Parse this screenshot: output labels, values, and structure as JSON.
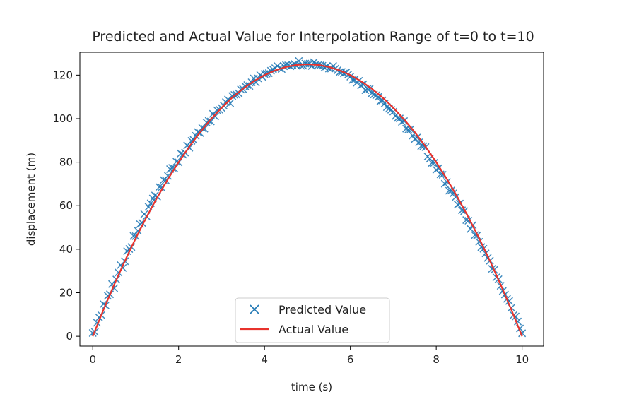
{
  "chart_data": {
    "type": "scatter",
    "title": "Predicted and Actual Value for Interpolation Range of t=0 to t=10",
    "xlabel": "time (s)",
    "ylabel": "displacement (m)",
    "xlim": [
      -0.3,
      10.5
    ],
    "ylim": [
      -4.5,
      130.5
    ],
    "xticks": [
      0,
      2,
      4,
      6,
      8,
      10
    ],
    "yticks": [
      0,
      20,
      40,
      60,
      80,
      100,
      120
    ],
    "grid": false,
    "legend_position": "bottom-center",
    "series": [
      {
        "name": "Predicted Value",
        "marker": "x",
        "color": "#1f77b4",
        "x": [
          0.0,
          0.05,
          0.1,
          0.15,
          0.2,
          0.25,
          0.3,
          0.35,
          0.4,
          0.45,
          0.5,
          0.55,
          0.6,
          0.65,
          0.7,
          0.75,
          0.8,
          0.85,
          0.9,
          0.95,
          1.0,
          1.05,
          1.1,
          1.15,
          1.2,
          1.25,
          1.3,
          1.35,
          1.4,
          1.45,
          1.5,
          1.55,
          1.6,
          1.65,
          1.7,
          1.75,
          1.8,
          1.85,
          1.9,
          1.95,
          2.0,
          2.05,
          2.1,
          2.15,
          2.2,
          2.25,
          2.3,
          2.35,
          2.4,
          2.45,
          2.5,
          2.55,
          2.6,
          2.65,
          2.7,
          2.75,
          2.8,
          2.85,
          2.9,
          2.95,
          3.0,
          3.05,
          3.1,
          3.15,
          3.2,
          3.25,
          3.3,
          3.35,
          3.4,
          3.45,
          3.5,
          3.55,
          3.6,
          3.65,
          3.7,
          3.75,
          3.8,
          3.85,
          3.9,
          3.95,
          4.0,
          4.05,
          4.1,
          4.15,
          4.2,
          4.25,
          4.3,
          4.35,
          4.4,
          4.45,
          4.5,
          4.55,
          4.6,
          4.65,
          4.7,
          4.75,
          4.8,
          4.85,
          4.9,
          4.95,
          5.0,
          5.05,
          5.1,
          5.15,
          5.2,
          5.25,
          5.3,
          5.35,
          5.4,
          5.45,
          5.5,
          5.55,
          5.6,
          5.65,
          5.7,
          5.75,
          5.8,
          5.85,
          5.9,
          5.95,
          6.0,
          6.05,
          6.1,
          6.15,
          6.2,
          6.25,
          6.3,
          6.35,
          6.4,
          6.45,
          6.5,
          6.55,
          6.6,
          6.65,
          6.7,
          6.75,
          6.8,
          6.85,
          6.9,
          6.95,
          7.0,
          7.05,
          7.1,
          7.15,
          7.2,
          7.25,
          7.3,
          7.35,
          7.4,
          7.45,
          7.5,
          7.55,
          7.6,
          7.65,
          7.7,
          7.75,
          7.8,
          7.85,
          7.9,
          7.95,
          8.0,
          8.05,
          8.1,
          8.15,
          8.2,
          8.25,
          8.3,
          8.35,
          8.4,
          8.45,
          8.5,
          8.55,
          8.6,
          8.65,
          8.7,
          8.75,
          8.8,
          8.85,
          8.9,
          8.95,
          9.0,
          9.05,
          9.1,
          9.15,
          9.2,
          9.25,
          9.3,
          9.35,
          9.4,
          9.45,
          9.5,
          9.55,
          9.6,
          9.65,
          9.7,
          9.75,
          9.8,
          9.85,
          9.9,
          9.95,
          10.0
        ],
        "y": [
          1.5,
          2.0,
          6.2,
          8.6,
          9.7,
          14.8,
          14.2,
          18.6,
          19.3,
          24.0,
          22.1,
          26.1,
          29.3,
          32.7,
          31.4,
          34.5,
          39.1,
          40.1,
          41.0,
          46.1,
          46.0,
          48.5,
          51.5,
          52.1,
          56.1,
          55.2,
          59.5,
          61.1,
          63.3,
          64.7,
          64.2,
          68.6,
          68.4,
          71.8,
          71.7,
          73.7,
          76.8,
          77.4,
          77.1,
          80.2,
          79.9,
          84.0,
          83.5,
          84.4,
          87.7,
          86.6,
          89.8,
          90.2,
          92.1,
          93.8,
          93.4,
          95.7,
          95.4,
          98.2,
          99.0,
          98.7,
          102.2,
          101.0,
          103.8,
          104.1,
          104.9,
          106.0,
          107.6,
          108.8,
          107.1,
          110.4,
          110.9,
          111.0,
          111.6,
          113.4,
          113.6,
          114.9,
          115.4,
          115.0,
          116.7,
          118.5,
          116.6,
          118.5,
          120.0,
          119.2,
          120.5,
          120.7,
          120.9,
          122.0,
          122.6,
          123.2,
          124.2,
          123.2,
          122.8,
          124.2,
          124.6,
          124.5,
          124.1,
          124.6,
          125.1,
          124.2,
          126.5,
          124.3,
          124.4,
          125.3,
          125.1,
          125.3,
          124.2,
          125.9,
          125.0,
          124.6,
          124.5,
          124.3,
          123.5,
          124.0,
          123.0,
          123.0,
          124.2,
          123.0,
          122.2,
          121.4,
          121.5,
          120.8,
          121.2,
          120.3,
          119.3,
          117.8,
          118.0,
          116.5,
          117.4,
          115.3,
          115.8,
          113.1,
          113.7,
          113.7,
          111.7,
          111.1,
          110.7,
          110.0,
          108.0,
          108.4,
          107.0,
          105.3,
          104.6,
          104.1,
          103.2,
          101.2,
          100.3,
          100.1,
          98.5,
          98.9,
          95.4,
          95.0,
          95.1,
          92.2,
          90.6,
          91.3,
          89.1,
          87.4,
          87.3,
          86.9,
          82.6,
          81.6,
          79.7,
          79.7,
          76.5,
          77.2,
          74.4,
          74.2,
          70.1,
          70.9,
          66.9,
          67.0,
          65.7,
          63.9,
          60.5,
          61.0,
          57.9,
          57.5,
          53.4,
          53.1,
          49.3,
          51.1,
          46.5,
          46.3,
          43.4,
          41.0,
          40.2,
          38.1,
          36.0,
          34.7,
          31.0,
          30.5,
          27.1,
          26.2,
          23.2,
          20.8,
          19.2,
          17.2,
          16.2,
          13.1,
          9.7,
          9.1,
          6.8,
          3.6,
          1.4
        ]
      },
      {
        "name": "Actual Value",
        "marker": "line",
        "color": "#e8322c",
        "formula_note": "",
        "x": [
          0,
          0.25,
          0.5,
          0.75,
          1,
          1.25,
          1.5,
          1.75,
          2,
          2.25,
          2.5,
          2.75,
          3,
          3.25,
          3.5,
          3.75,
          4,
          4.25,
          4.5,
          4.75,
          5,
          5.25,
          5.5,
          5.75,
          6,
          6.25,
          6.5,
          6.75,
          7,
          7.25,
          7.5,
          7.75,
          8,
          8.25,
          8.5,
          8.75,
          9,
          9.25,
          9.5,
          9.75,
          10
        ],
        "y": [
          0,
          12.19,
          23.75,
          34.69,
          45.0,
          54.69,
          63.75,
          72.19,
          80.0,
          87.19,
          93.75,
          99.69,
          105.0,
          109.69,
          113.75,
          117.19,
          120.0,
          122.19,
          123.75,
          124.69,
          125.0,
          124.69,
          123.75,
          122.19,
          120.0,
          117.19,
          113.75,
          109.69,
          105.0,
          99.69,
          93.75,
          87.19,
          80.0,
          72.19,
          63.75,
          54.69,
          45.0,
          34.69,
          23.75,
          12.19,
          0
        ]
      }
    ]
  }
}
